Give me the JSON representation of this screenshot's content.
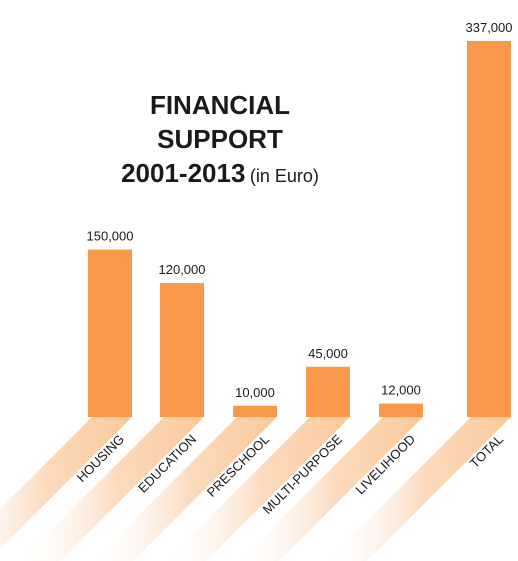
{
  "chart_data": {
    "type": "bar",
    "title": "FINANCIAL SUPPORT",
    "subtitle": "2001-2013",
    "subtitle_unit": "(in Euro)",
    "categories": [
      "HOUSING",
      "EDUCATION",
      "PRESCHOOL",
      "MULTI-PURPOSE",
      "LIVELIHOOD",
      "TOTAL"
    ],
    "values": [
      150000,
      120000,
      10000,
      45000,
      12000,
      337000
    ],
    "value_labels": [
      "150,000",
      "120,000",
      "10,000",
      "45,000",
      "12,000",
      "337,000"
    ],
    "ylim": [
      0,
      337000
    ],
    "grid": false,
    "legend": "none",
    "bar_color": "#f7984a",
    "label_band_color": "#fbd3b0"
  }
}
